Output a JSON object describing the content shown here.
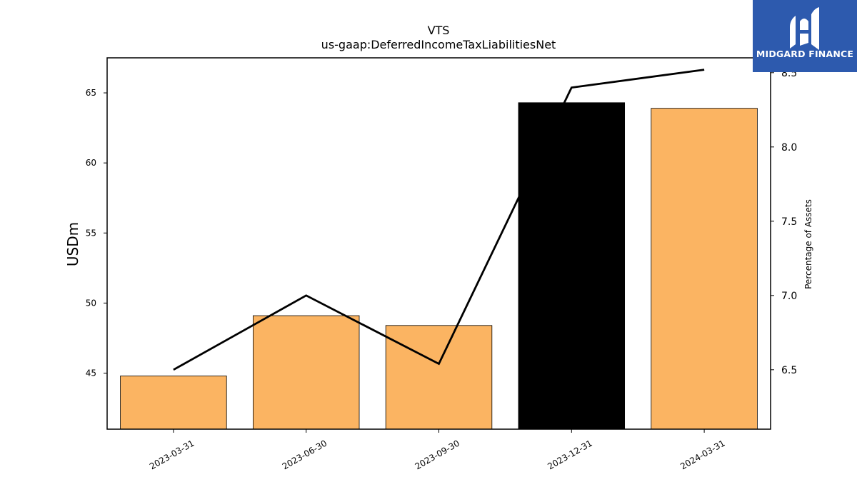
{
  "brand": {
    "name": "MIDGARD FINANCE",
    "logo_icon": "midgard-finance-logo-icon",
    "bg_color": "#2d5aae"
  },
  "chart_data": {
    "type": "bar",
    "title": "VTS",
    "subtitle": "us-gaap:DeferredIncomeTaxLiabilitiesNet",
    "categories": [
      "2023-03-31",
      "2023-06-30",
      "2023-09-30",
      "2023-12-31",
      "2024-03-31"
    ],
    "ylabel": "USDm",
    "ylim": [
      41,
      67.5
    ],
    "yticks": [
      45,
      50,
      55,
      60,
      65
    ],
    "y2label": "Percentage of Assets",
    "y2lim": [
      6.1,
      8.6
    ],
    "y2ticks": [
      "6.5",
      "7.0",
      "7.5",
      "8.0",
      "8.5"
    ],
    "series": [
      {
        "type": "bar",
        "axis": "left",
        "values": [
          44.8,
          49.1,
          48.4,
          64.3,
          63.9
        ],
        "colors": [
          "#fbb462",
          "#fbb462",
          "#fbb462",
          "#000000",
          "#fbb462"
        ]
      },
      {
        "type": "line",
        "axis": "right",
        "values": [
          6.5,
          7.0,
          6.54,
          8.4,
          8.52
        ],
        "color": "#000000"
      }
    ],
    "grid": false
  }
}
